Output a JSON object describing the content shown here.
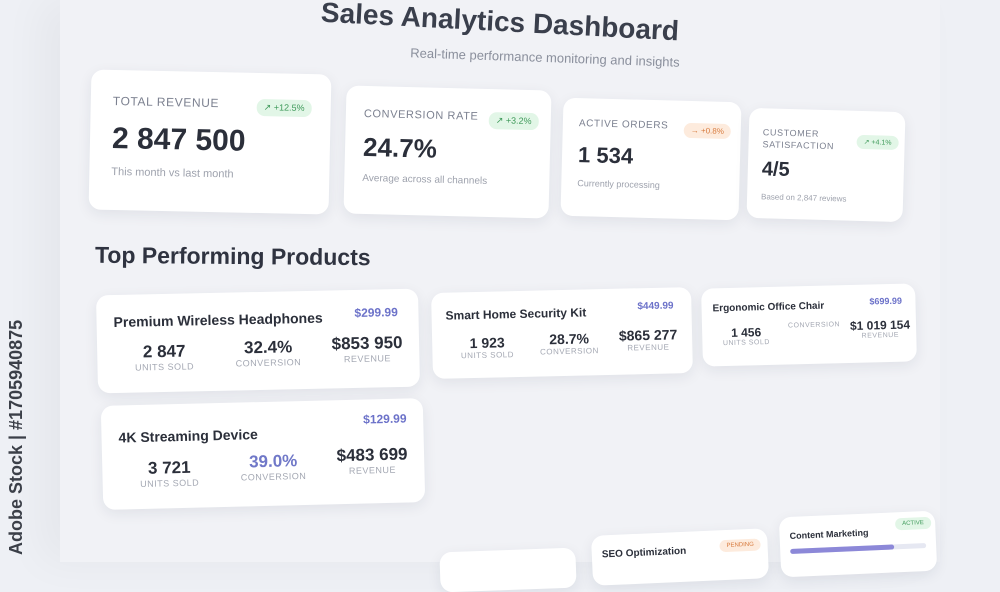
{
  "header": {
    "title": "Sales Analytics Dashboard",
    "subtitle": "Real-time performance monitoring and insights"
  },
  "kpis": [
    {
      "label": "TOTAL REVENUE",
      "value": "2 847 500",
      "note": "This month vs last month",
      "badge": "↗ +12.5%",
      "badge_tone": "green"
    },
    {
      "label": "CONVERSION RATE",
      "value": "24.7%",
      "note": "Average across all channels",
      "badge": "↗ +3.2%",
      "badge_tone": "green"
    },
    {
      "label": "ACTIVE ORDERS",
      "value": "1 534",
      "note": "Currently processing",
      "badge": "→ +0.8%",
      "badge_tone": "orange"
    },
    {
      "label": "CUSTOMER SATISFACTION",
      "value": "4/5",
      "note": "Based on 2,847 reviews",
      "badge": "↗ +4.1%",
      "badge_tone": "green"
    }
  ],
  "products_section": {
    "title": "Top Performing Products",
    "items": [
      {
        "name": "Premium Wireless Headphones",
        "price": "$299.99",
        "units": "2 847",
        "units_label": "UNITS SOLD",
        "conversion": "32.4%",
        "conversion_label": "CONVERSION",
        "revenue": "$853 950",
        "revenue_label": "REVENUE"
      },
      {
        "name": "Smart Home Security Kit",
        "price": "$449.99",
        "units": "1 923",
        "units_label": "UNITS SOLD",
        "conversion": "28.7%",
        "conversion_label": "CONVERSION",
        "revenue": "$865 277",
        "revenue_label": "REVENUE"
      },
      {
        "name": "Ergonomic Office Chair",
        "price": "$699.99",
        "units": "1 456",
        "units_label": "UNITS SOLD",
        "conversion": "",
        "conversion_label": "CONVERSION",
        "revenue": "$1 019 154",
        "revenue_label": "REVENUE"
      },
      {
        "name": "4K Streaming Device",
        "price": "$129.99",
        "units": "3 721",
        "units_label": "UNITS SOLD",
        "conversion": "39.0%",
        "conversion_label": "CONVERSION",
        "revenue": "$483 699",
        "revenue_label": "REVENUE"
      }
    ]
  },
  "bottom_cards": [
    {
      "name": "SEO Optimization",
      "badge": "PENDING"
    },
    {
      "name": "Content Marketing",
      "badge": "ACTIVE"
    }
  ],
  "watermark": "Adobe Stock | #1705940875",
  "colors": {
    "accent": "#6c72c9",
    "positive": "#3f9a5a",
    "warning": "#d77a3d"
  }
}
